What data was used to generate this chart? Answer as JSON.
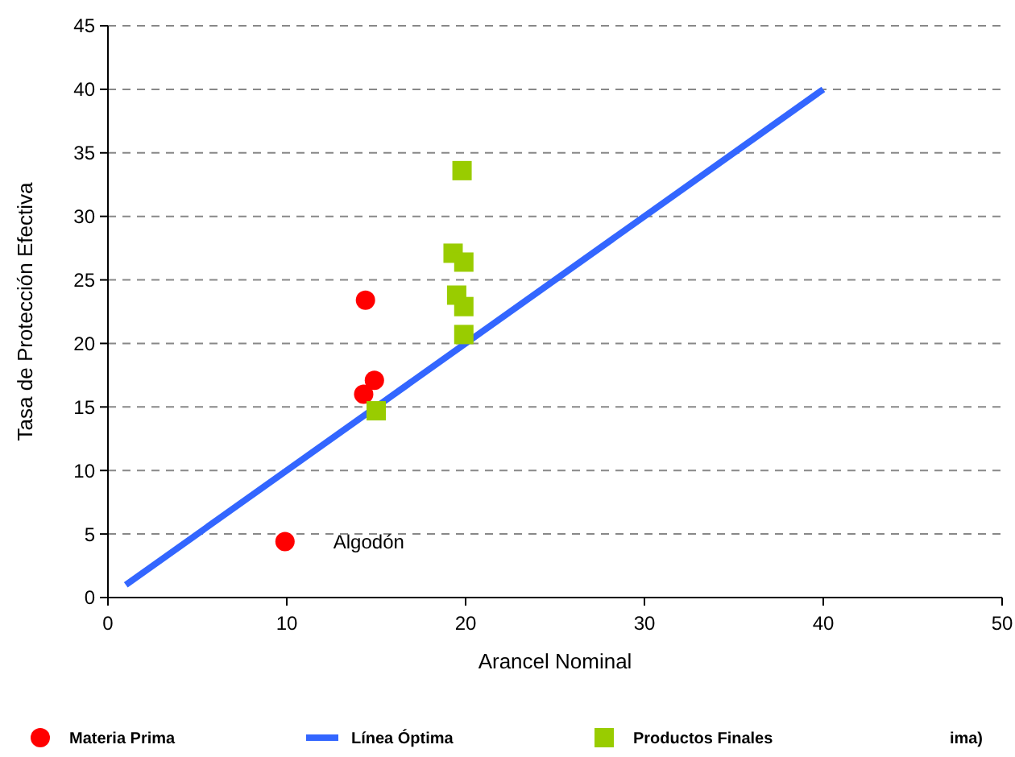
{
  "chart_data": {
    "type": "scatter",
    "xlabel": "Arancel Nominal",
    "ylabel": "Tasa de Protección Efectiva",
    "xlim": [
      0,
      50
    ],
    "ylim": [
      0,
      45
    ],
    "xticks": [
      0,
      10,
      20,
      30,
      40,
      50
    ],
    "yticks": [
      0,
      5,
      10,
      15,
      20,
      25,
      30,
      35,
      40,
      45
    ],
    "grid": "y",
    "legend": "bottom",
    "series": [
      {
        "name": "Materia Prima",
        "color": "#ff0000",
        "marker": "circle",
        "x": [
          9.9,
          14.4,
          14.3,
          14.9
        ],
        "values": [
          4.4,
          23.4,
          16.0,
          17.1
        ]
      },
      {
        "name": "Línea Óptima",
        "type": "line",
        "color": "#3366ff",
        "x": [
          1,
          40
        ],
        "values": [
          1,
          40
        ]
      },
      {
        "name": "Productos Finales",
        "color": "#99cc00",
        "marker": "square",
        "x": [
          19.8,
          19.3,
          19.9,
          19.5,
          19.9,
          19.9,
          15.0
        ],
        "values": [
          33.6,
          27.1,
          26.4,
          23.8,
          22.9,
          20.7,
          14.7
        ]
      }
    ],
    "annotations": [
      {
        "text": "Algodón",
        "x": 9.9,
        "y": 4.4
      },
      "ima)"
    ]
  }
}
